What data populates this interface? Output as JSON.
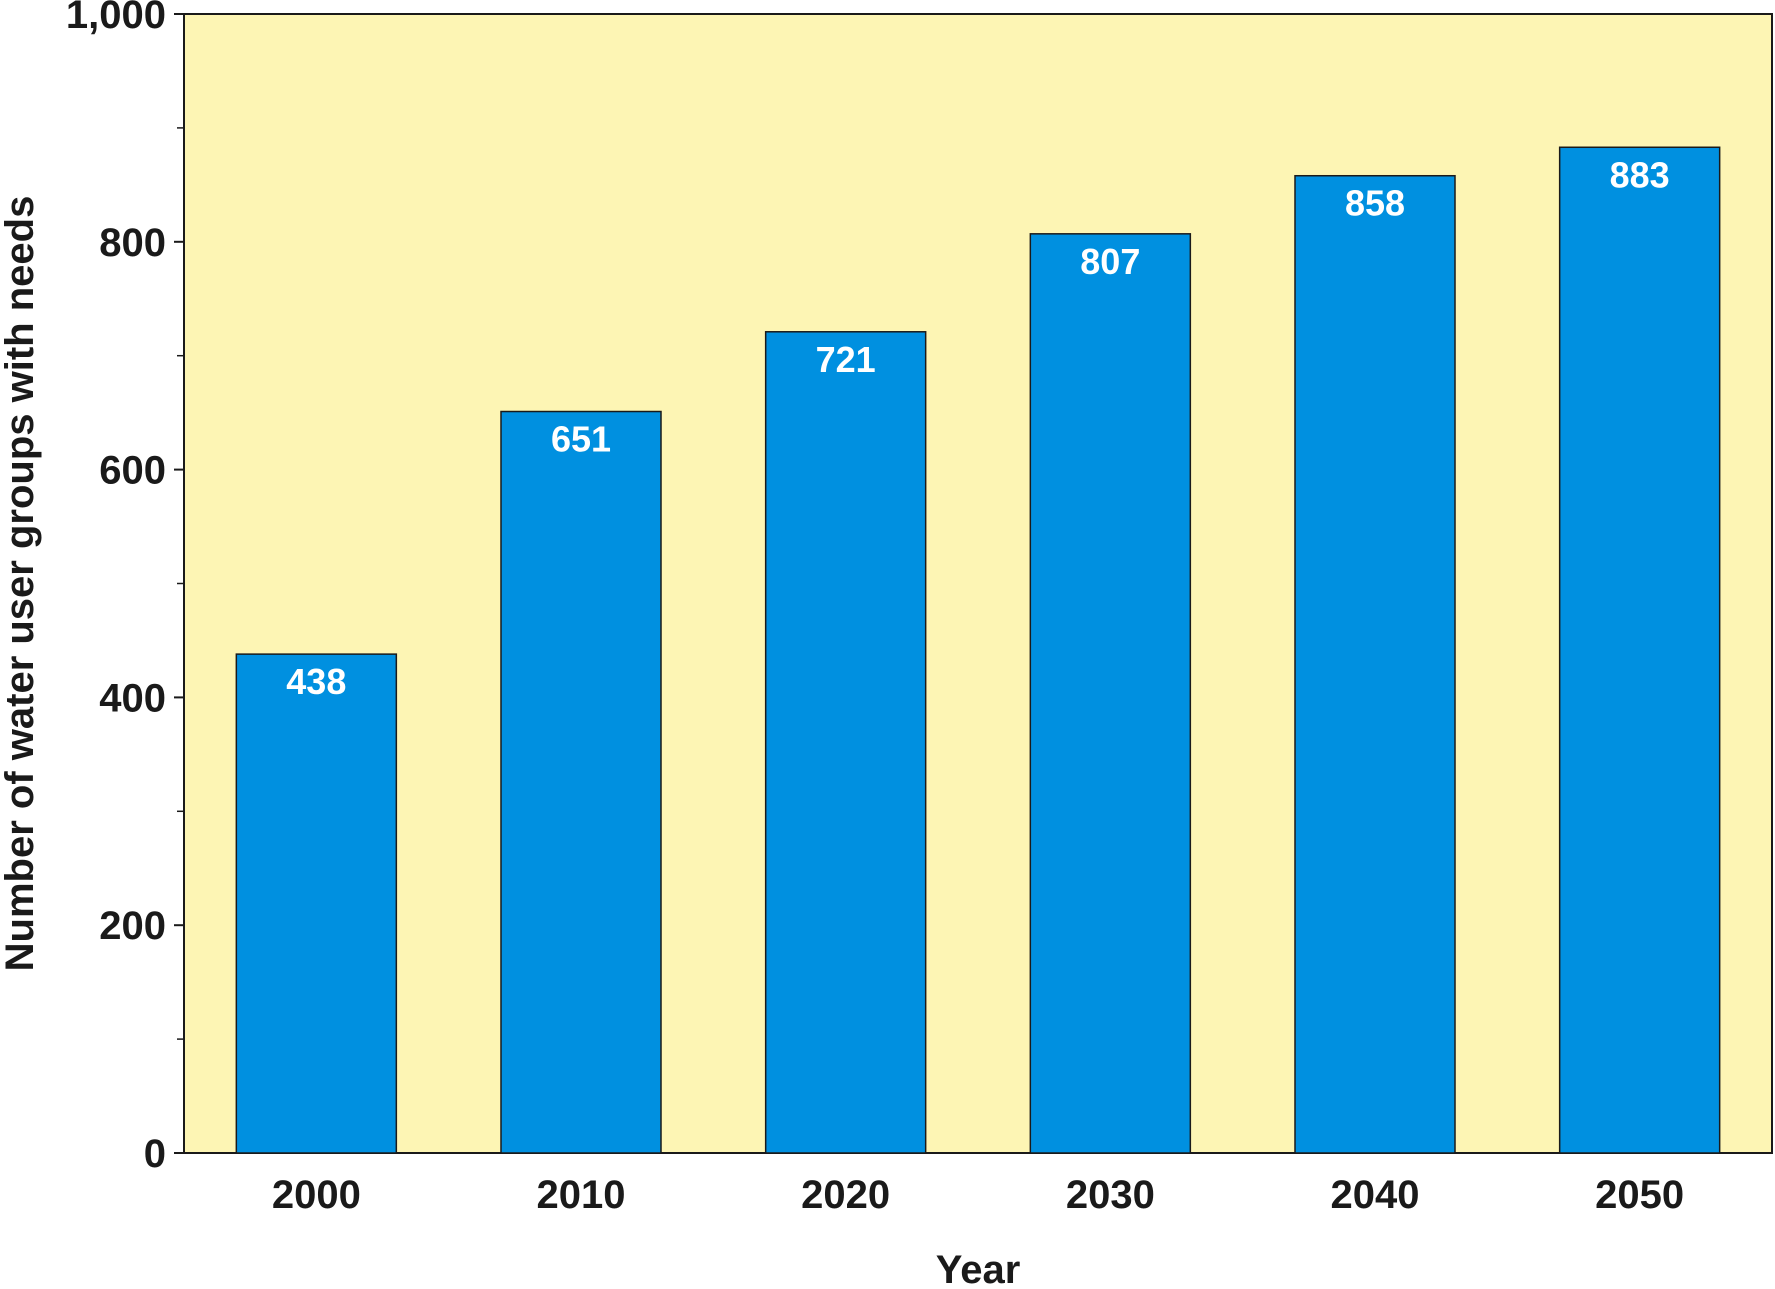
{
  "chart_data": {
    "type": "bar",
    "categories": [
      "2000",
      "2010",
      "2020",
      "2030",
      "2040",
      "2050"
    ],
    "values": [
      438,
      651,
      721,
      807,
      858,
      883
    ],
    "data_labels": [
      "438",
      "651",
      "721",
      "807",
      "858",
      "883"
    ],
    "xlabel": "Year",
    "ylabel": "Number of water user groups with needs",
    "ylim": [
      0,
      1000
    ],
    "y_major_ticks": [
      0,
      200,
      400,
      600,
      800,
      1000
    ],
    "y_major_tick_labels": [
      "0",
      "200",
      "400",
      "600",
      "800",
      "1,000"
    ],
    "y_minor_ticks": [
      100,
      300,
      500,
      700,
      900
    ],
    "grid": false,
    "legend": "none",
    "colors": {
      "bar": "#0090e0",
      "plot_background": "#fdf5b4",
      "axis": "#1a1a1a",
      "bar_label_text": "#ffffff"
    }
  }
}
